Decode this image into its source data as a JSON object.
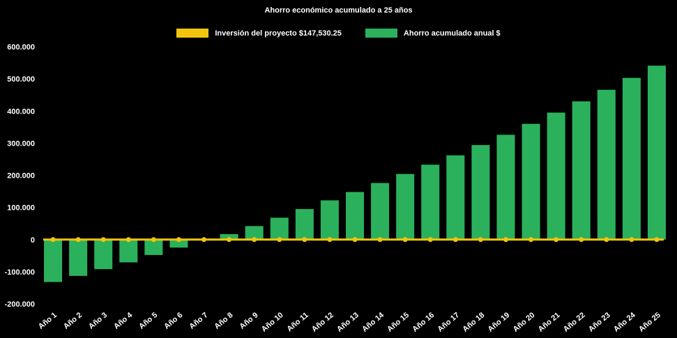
{
  "title": "Ahorro económico acumulado a 25 años",
  "legend": {
    "items": [
      {
        "label": "Inversión del proyecto $147,530.25",
        "color": "#F2C40E"
      },
      {
        "label": "Ahorro acumulado anual $",
        "color": "#2BB15C"
      }
    ]
  },
  "chart_data": {
    "type": "bar",
    "title": "Ahorro económico acumulado a 25 años",
    "background": "#000000",
    "grid": false,
    "legend_position": "top",
    "categories": [
      "Año 1",
      "Año 2",
      "Año 3",
      "Año 4",
      "Año 5",
      "Año 6",
      "Año 7",
      "Año 8",
      "Año 9",
      "Año 10",
      "Año 11",
      "Año 12",
      "Año 13",
      "Año 14",
      "Año 15",
      "Año 16",
      "Año 17",
      "Año 18",
      "Año 19",
      "Año 20",
      "Año 21",
      "Año 22",
      "Año 23",
      "Año 24",
      "Año 25"
    ],
    "series": [
      {
        "name": "Inversión del proyecto $147,530.25",
        "type": "line",
        "color": "#F2C40E",
        "values": [
          0,
          0,
          0,
          0,
          0,
          0,
          0,
          0,
          0,
          0,
          0,
          0,
          0,
          0,
          0,
          0,
          0,
          0,
          0,
          0,
          0,
          0,
          0,
          0,
          0
        ]
      },
      {
        "name": "Ahorro acumulado anual $",
        "type": "bar",
        "color": "#2BB15C",
        "values": [
          -132000,
          -113000,
          -92000,
          -71000,
          -48000,
          -25000,
          1000,
          17000,
          42000,
          68000,
          95000,
          122000,
          148000,
          176000,
          204000,
          233000,
          262000,
          294000,
          326000,
          360000,
          395000,
          430000,
          466000,
          503000,
          541000
        ]
      }
    ],
    "ylim": [
      -200000,
      600000
    ],
    "yticks": [
      {
        "value": -200000,
        "label": "-200.000"
      },
      {
        "value": -100000,
        "label": "-100.000"
      },
      {
        "value": 0,
        "label": "0"
      },
      {
        "value": 100000,
        "label": "100.000"
      },
      {
        "value": 200000,
        "label": "200.000"
      },
      {
        "value": 300000,
        "label": "300.000"
      },
      {
        "value": 400000,
        "label": "400.000"
      },
      {
        "value": 500000,
        "label": "500.000"
      },
      {
        "value": 600000,
        "label": "600.000"
      }
    ]
  }
}
